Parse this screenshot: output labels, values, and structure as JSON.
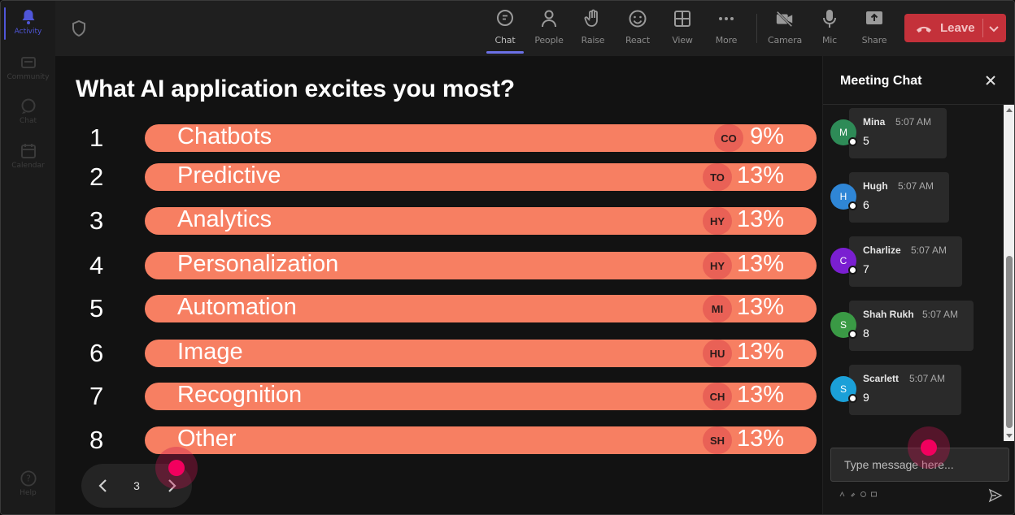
{
  "rail": {
    "items": [
      {
        "label": "Activity",
        "icon": "bell-icon",
        "active": true
      },
      {
        "label": "Community",
        "icon": "community-icon"
      },
      {
        "label": "Chat",
        "icon": "chat-icon"
      },
      {
        "label": "Calendar",
        "icon": "calendar-icon"
      }
    ],
    "help_label": "Help"
  },
  "toolbar": {
    "buttons": [
      {
        "label": "Chat",
        "icon": "chat-icon",
        "active": true
      },
      {
        "label": "People",
        "icon": "people-icon"
      },
      {
        "label": "Raise",
        "icon": "raise-hand-icon"
      },
      {
        "label": "React",
        "icon": "react-icon"
      },
      {
        "label": "View",
        "icon": "view-grid-icon"
      },
      {
        "label": "More",
        "icon": "more-icon"
      }
    ],
    "media": [
      {
        "label": "Camera",
        "icon": "camera-off-icon"
      },
      {
        "label": "Mic",
        "icon": "mic-icon"
      },
      {
        "label": "Share",
        "icon": "share-icon"
      }
    ],
    "leave_label": "Leave"
  },
  "poll": {
    "title": "What AI application excites you most?",
    "options": [
      {
        "rank": "1",
        "label": "Chatbots",
        "badge": "CO",
        "percent": "9%"
      },
      {
        "rank": "2",
        "label": "Predictive",
        "badge": "TO",
        "percent": "13%"
      },
      {
        "rank": "3",
        "label": "Analytics",
        "badge": "HY",
        "percent": "13%"
      },
      {
        "rank": "4",
        "label": "Personalization",
        "badge": "HY",
        "percent": "13%"
      },
      {
        "rank": "5",
        "label": "Automation",
        "badge": "MI",
        "percent": "13%"
      },
      {
        "rank": "6",
        "label": "Image",
        "badge": "HU",
        "percent": "13%"
      },
      {
        "rank": "7",
        "label": "Recognition",
        "badge": "CH",
        "percent": "13%"
      },
      {
        "rank": "8",
        "label": "Other",
        "badge": "SH",
        "percent": "13%"
      }
    ],
    "page": "3"
  },
  "chat": {
    "title": "Meeting Chat",
    "messages": [
      {
        "initial": "M",
        "name": "Mina",
        "time": "5:07 AM",
        "text": "5",
        "color": "#2e8b57"
      },
      {
        "initial": "H",
        "name": "Hugh",
        "time": "5:07 AM",
        "text": "6",
        "color": "#2f86d6"
      },
      {
        "initial": "C",
        "name": "Charlize",
        "time": "5:07 AM",
        "text": "7",
        "color": "#7a1fd1"
      },
      {
        "initial": "S",
        "name": "Shah Rukh",
        "time": "5:07 AM",
        "text": "8",
        "color": "#3a9a45"
      },
      {
        "initial": "S",
        "name": "Scarlett",
        "time": "5:07 AM",
        "text": "9",
        "color": "#1ba0d8"
      }
    ],
    "input_placeholder": "Type message here..."
  },
  "colors": {
    "bar": "#f77f62",
    "badge": "#e96156",
    "leave": "#c4313a",
    "accent": "#4f56d9"
  }
}
